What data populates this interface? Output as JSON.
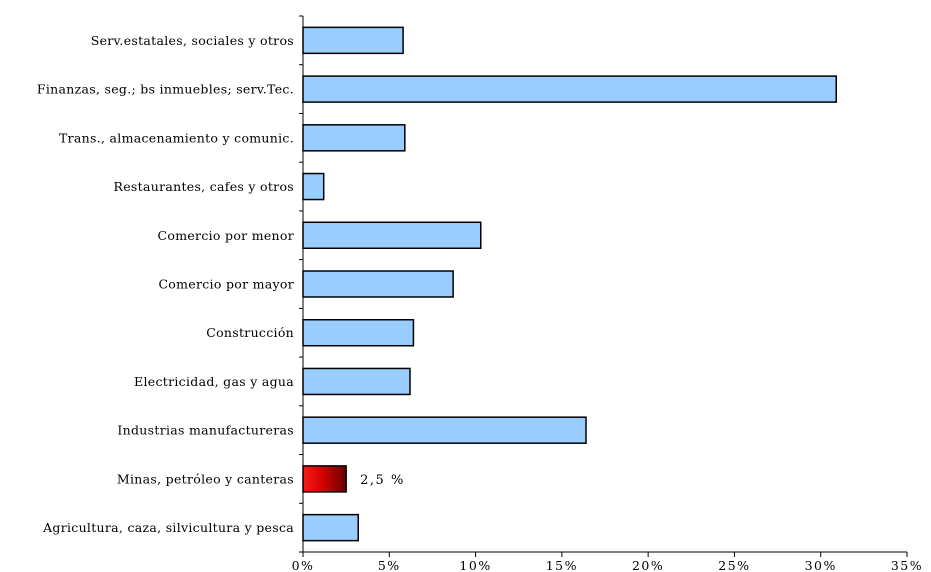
{
  "chart_data": {
    "type": "bar",
    "orientation": "horizontal",
    "categories": [
      "Serv.estatales, sociales y otros",
      "Finanzas, seg.; bs inmuebles; serv.Tec.",
      "Trans., almacenamiento y comunic.",
      "Restaurantes, cafes y otros",
      "Comercio por menor",
      "Comercio por mayor",
      "Construcción",
      "Electricidad, gas y agua",
      "Industrias manufactureras",
      "Minas, petróleo y canteras",
      "Agricultura, caza, silvicultura y pesca"
    ],
    "values": [
      5.8,
      30.9,
      5.9,
      1.2,
      10.3,
      8.7,
      6.4,
      6.2,
      16.4,
      2.5,
      3.2
    ],
    "highlight_index": 9,
    "data_labels": [
      {
        "category": "Minas, petróleo y canteras",
        "text": "2,5 %"
      }
    ],
    "xlim": [
      0,
      35
    ],
    "xticks": [
      0,
      5,
      10,
      15,
      20,
      25,
      30,
      35
    ],
    "xtick_labels": [
      "0%",
      "5%",
      "10%",
      "15%",
      "20%",
      "25%",
      "30%",
      "35%"
    ],
    "grid": false,
    "legend": "none",
    "colors": {
      "bar_fill": "#99ccff",
      "bar_stroke": "#000000",
      "highlight_fill": "#cc0000",
      "highlight_gradient": [
        "#ff1a1a",
        "#cc0000",
        "#660000"
      ],
      "axis": "#000000"
    }
  }
}
